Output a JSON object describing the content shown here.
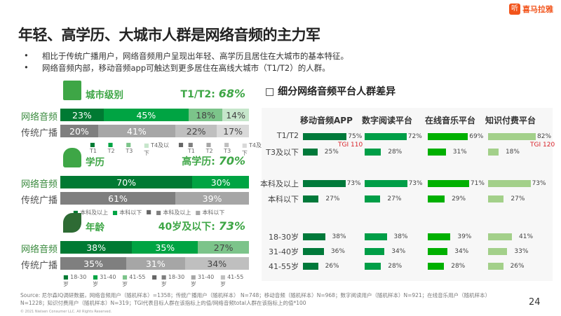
{
  "title": "年轻、高学历、大城市人群是网络音频的主力军",
  "logo": {
    "mark": "听",
    "text": "喜马拉雅"
  },
  "bullets": [
    "相比于传统广播用户，网络音频用户呈现出年轻、高学历且居住在大城市的基本特征。",
    "网络音频内部，移动音频app可触达到更多居住在高线大城市（T1/T2）的人群。"
  ],
  "colors": {
    "green_dark": "#007a33",
    "green_mid": "#00a443",
    "green_light": "#7cc48a",
    "green_pale": "#c6e6cb",
    "gray_dark": "#7f7f7f",
    "gray_mid": "#a6a6a6",
    "gray_light": "#bfbfbf",
    "gray_pale": "#d9d9d9",
    "app": "#00793a",
    "read": "#009e47",
    "music": "#00b000",
    "paid": "#a3d08a"
  },
  "chart_data": [
    {
      "type": "stacked-bar",
      "section": "城市级别",
      "highlight": "T1/T2: ",
      "highlight_value": "68%",
      "rows": [
        {
          "label": "网络音频",
          "values": [
            23,
            45,
            18,
            14
          ]
        },
        {
          "label": "传统广播",
          "values": [
            20,
            41,
            22,
            17
          ]
        }
      ],
      "legend_green": [
        "T1",
        "T2",
        "T3",
        "T4及以下"
      ],
      "legend_gray": [
        "T1",
        "T2",
        "T3",
        "T4及以下"
      ]
    },
    {
      "type": "stacked-bar",
      "section": "学历",
      "highlight": "高学历: ",
      "highlight_value": "70%",
      "rows": [
        {
          "label": "网络音频",
          "values": [
            70,
            30
          ]
        },
        {
          "label": "传统广播",
          "values": [
            61,
            39
          ]
        }
      ],
      "legend_green": [
        "本科及以上",
        "本科以下"
      ],
      "legend_gray": [
        "本科及以上",
        "本科以下"
      ]
    },
    {
      "type": "stacked-bar",
      "section": "年龄",
      "highlight": "40岁及以下: ",
      "highlight_value": "73%",
      "rows": [
        {
          "label": "网络音频",
          "values": [
            38,
            35,
            27
          ]
        },
        {
          "label": "传统广播",
          "values": [
            35,
            31,
            34
          ]
        }
      ],
      "legend_green": [
        "18-30岁",
        "31-40岁",
        "41-55岁"
      ],
      "legend_gray": [
        "18-30岁",
        "31-40岁",
        "41-55岁"
      ]
    },
    {
      "type": "bar",
      "title": "细分网络音频平台人群差异",
      "columns": [
        "移动音频APP",
        "数字阅读平台",
        "在线音乐平台",
        "知识付费平台"
      ],
      "rows": [
        {
          "label": "T1/T2",
          "values": [
            75,
            72,
            69,
            82
          ]
        },
        {
          "label": "T3及以下",
          "values": [
            25,
            28,
            31,
            18
          ]
        },
        {
          "label": "本科及以上",
          "values": [
            73,
            73,
            71,
            73
          ]
        },
        {
          "label": "本科以下",
          "values": [
            27,
            27,
            29,
            27
          ]
        },
        {
          "label": "18-30岁",
          "values": [
            38,
            38,
            39,
            41
          ]
        },
        {
          "label": "31-40岁",
          "values": [
            36,
            34,
            34,
            33
          ]
        },
        {
          "label": "41-55岁",
          "values": [
            26,
            28,
            28,
            26
          ]
        }
      ],
      "annotations": [
        {
          "row": "T1/T2",
          "column": "移动音频APP",
          "text": "TGI 110"
        },
        {
          "row": "T1/T2",
          "column": "知识付费平台",
          "text": "TGI 120"
        }
      ]
    }
  ],
  "footer": {
    "source": "Source: 尼尔森IQ调研数据，网络音频用户（随机样本）=1358；传统广播用户（随机样本） N=748；移动音频（随机样本）N=968；数字阅读用户（随机样本）N=921；在线音乐用户（随机样本）N=1228；知识付费用户（随机样本）N=319；TGI代表目标人群在该指标上的值/网络音频total人群在该指标上的值*100",
    "copyright": "© 2021 Nielsen Consumer LLC. All Rights Reserved.",
    "page": "24"
  }
}
